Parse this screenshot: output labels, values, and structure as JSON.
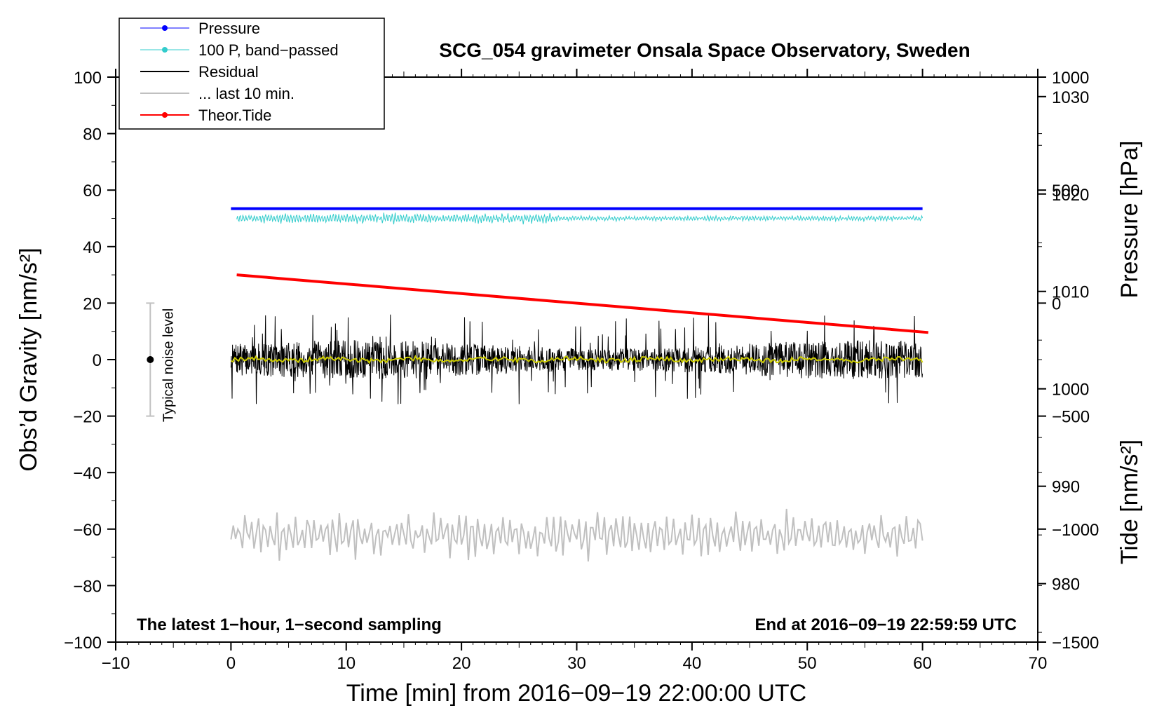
{
  "chart_data": {
    "type": "line",
    "title": "SCG_054 gravimeter Onsala Space Observatory, Sweden",
    "xlabel": "Time [min] from 2016−09−19 22:00:00 UTC",
    "ylabel": "Obs’d Gravity [nm/s²]",
    "ylabel_right_pressure": "Pressure [hPa]",
    "ylabel_right_tide": "Tide [nm/s²]",
    "xlim": [
      -10,
      70
    ],
    "ylim": [
      -100,
      100
    ],
    "pressure_axis_range": [
      974,
      1032
    ],
    "tide_axis_range": [
      -1500,
      1000
    ],
    "xticks": [
      -10,
      0,
      10,
      20,
      30,
      40,
      50,
      60,
      70
    ],
    "xtick_labels": [
      "−10",
      "0",
      "10",
      "20",
      "30",
      "40",
      "50",
      "60",
      "70"
    ],
    "yticks": [
      100,
      80,
      60,
      40,
      20,
      0,
      -20,
      -40,
      -60,
      -80,
      -100
    ],
    "ytick_labels": [
      "100",
      "80",
      "60",
      "40",
      "20",
      "0",
      "−20",
      "−40",
      "−60",
      "−80",
      "−100"
    ],
    "pressure_ticks": [
      1030,
      1020,
      1010,
      1000,
      990,
      980
    ],
    "pressure_tick_labels": [
      "1030",
      "1020",
      "1010",
      "1000",
      "990",
      "980"
    ],
    "tide_ticks": [
      1000,
      500,
      0,
      -500,
      -1000,
      -1500
    ],
    "tide_tick_labels": [
      "1000",
      "500",
      "0",
      "−500",
      "−1000",
      "−1500"
    ],
    "legend": [
      {
        "label": "Pressure",
        "color": "#0000ff",
        "marker": "dot"
      },
      {
        "label": "100 P, band−passed",
        "color": "#33cccc",
        "marker": "dot"
      },
      {
        "label": "Residual",
        "color": "#000000",
        "marker": "none"
      },
      {
        "label": "... last 10 min.",
        "color": "#c0c0c0",
        "marker": "none"
      },
      {
        "label": "Theor.Tide",
        "color": "#ff0000",
        "marker": "dot"
      }
    ],
    "legend_position": "top-left",
    "series": [
      {
        "name": "Pressure",
        "color": "#0000ff",
        "axis": "pressure",
        "x": [
          0,
          60
        ],
        "values": [
          1018.5,
          1018.5
        ]
      },
      {
        "name": "100 P, band−passed",
        "color": "#33cccc",
        "axis": "gravity",
        "x_range": [
          0.5,
          60
        ],
        "center": 50.0,
        "amplitude": 1.2
      },
      {
        "name": "Residual",
        "color": "#000000",
        "axis": "gravity",
        "x_range": [
          0,
          60
        ],
        "center": 0,
        "amplitude": 6,
        "min": -16,
        "max": 16
      },
      {
        "name": "Residual (smoothed)",
        "color": "#cccc00",
        "axis": "gravity",
        "x_range": [
          0,
          60
        ],
        "center": 0,
        "amplitude": 0.8
      },
      {
        "name": "... last 10 min.",
        "color": "#c0c0c0",
        "axis": "gravity",
        "x_range": [
          0,
          60
        ],
        "center": -62,
        "amplitude": 6,
        "min": -75,
        "max": -47
      },
      {
        "name": "Theor.Tide",
        "color": "#ff0000",
        "axis": "tide",
        "x": [
          0.5,
          60.5
        ],
        "values": [
          125,
          -130
        ]
      }
    ],
    "noise_bar": {
      "label": "Typical noise level",
      "x": -7,
      "center": 0,
      "low": -20,
      "high": 20,
      "color": "#c0c0c0"
    },
    "annotations": {
      "left": "The latest 1−hour, 1−second sampling",
      "right": "End at 2016−09−19 22:59:59 UTC"
    }
  }
}
